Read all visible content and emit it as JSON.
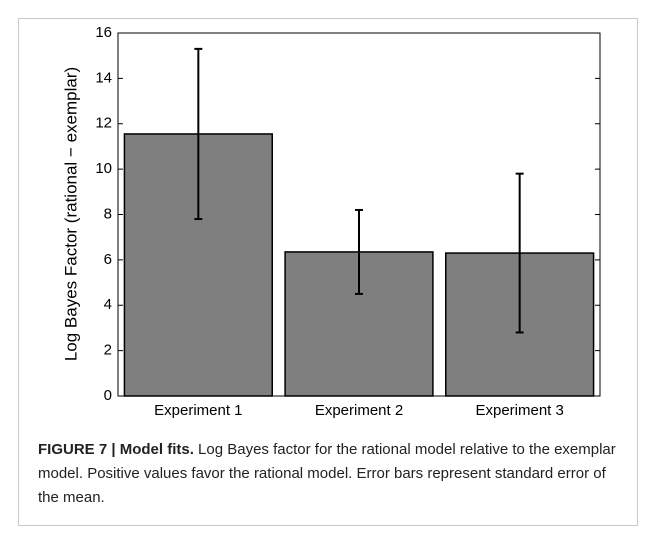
{
  "chart_data": {
    "type": "bar",
    "ylabel": "Log Bayes Factor (rational − exemplar)",
    "categories": [
      "Experiment 1",
      "Experiment 2",
      "Experiment 3"
    ],
    "values": [
      11.55,
      6.35,
      6.3
    ],
    "errors": [
      3.75,
      1.85,
      3.5
    ],
    "color": "#7f7f7f",
    "ylim": [
      0,
      16
    ],
    "yticks": [
      0,
      2,
      4,
      6,
      8,
      10,
      12,
      14,
      16
    ],
    "grid": false
  },
  "caption": {
    "label": "FIGURE 7 | Model fits.",
    "text": "Log Bayes factor for the rational model relative to the exemplar model. Positive values favor the rational model. Error bars represent standard error of the mean."
  }
}
